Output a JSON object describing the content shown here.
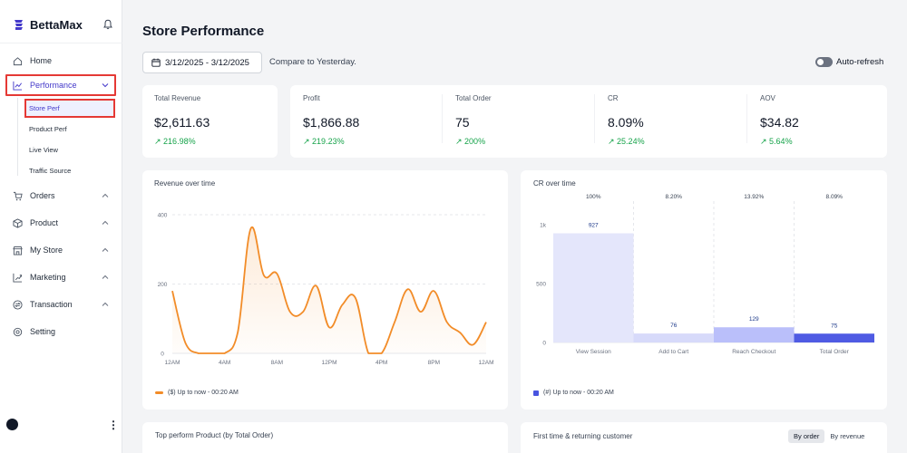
{
  "app": {
    "brand": "BettaMax"
  },
  "sidebar": {
    "items": [
      {
        "label": "Home",
        "icon": "home-icon"
      },
      {
        "label": "Performance",
        "icon": "chart-icon"
      },
      {
        "label": "Orders",
        "icon": "cart-icon"
      },
      {
        "label": "Product",
        "icon": "box-icon"
      },
      {
        "label": "My Store",
        "icon": "store-icon"
      },
      {
        "label": "Marketing",
        "icon": "marketing-icon"
      },
      {
        "label": "Transaction",
        "icon": "transaction-icon"
      },
      {
        "label": "Setting",
        "icon": "gear-icon"
      }
    ],
    "sub_items": [
      "Store Perf",
      "Product Perf",
      "Live View",
      "Traffic Source"
    ]
  },
  "header": {
    "title": "Store Performance",
    "date_range": "3/12/2025 - 3/12/2025",
    "compare": "Compare to Yesterday.",
    "auto_refresh": "Auto-refresh"
  },
  "kpis": [
    {
      "label": "Total Revenue",
      "value": "$2,611.63",
      "change": "216.98%"
    },
    {
      "label": "Profit",
      "value": "$1,866.88",
      "change": "219.23%"
    },
    {
      "label": "Total Order",
      "value": "75",
      "change": "200%"
    },
    {
      "label": "CR",
      "value": "8.09%",
      "change": "25.24%"
    },
    {
      "label": "AOV",
      "value": "$34.82",
      "change": "5.64%"
    }
  ],
  "revenue_card": {
    "title": "Revenue over time",
    "legend": "($) Up to now - 00:20 AM"
  },
  "cr_card": {
    "title": "CR over time",
    "legend": "(#) Up to now - 00:20 AM"
  },
  "bottom": {
    "left_title": "Top perform Product (by Total Order)",
    "right_title": "First time & returning customer",
    "toggle_by_order": "By order",
    "toggle_by_revenue": "By revenue"
  },
  "colors": {
    "accent": "#4338ca",
    "line": "#f28c28",
    "positive": "#16a34a",
    "highlight": "#e53935"
  },
  "chart_data": [
    {
      "type": "line",
      "title": "Revenue over time",
      "x": [
        "12AM",
        "1AM",
        "2AM",
        "3AM",
        "4AM",
        "5AM",
        "6AM",
        "7AM",
        "8AM",
        "9AM",
        "10AM",
        "11AM",
        "12PM",
        "1PM",
        "2PM",
        "3PM",
        "4PM",
        "5PM",
        "6PM",
        "7PM",
        "8PM",
        "9PM",
        "10PM",
        "11PM",
        "12AM"
      ],
      "y": [
        180,
        30,
        0,
        0,
        0,
        60,
        360,
        225,
        230,
        120,
        120,
        195,
        75,
        140,
        160,
        0,
        0,
        90,
        185,
        120,
        180,
        90,
        60,
        25,
        90
      ],
      "xticks": [
        "12AM",
        "4AM",
        "8AM",
        "12PM",
        "4PM",
        "8PM",
        "12AM"
      ],
      "yticks": [
        0,
        200,
        400
      ],
      "ylim": [
        0,
        400
      ],
      "legend": "($) Up to now - 00:20 AM"
    },
    {
      "type": "bar",
      "title": "CR over time",
      "categories": [
        "View Session",
        "Add to Cart",
        "Reach Checkout",
        "Total Order"
      ],
      "values": [
        927,
        76,
        129,
        75
      ],
      "rates": [
        "100%",
        "8.20%",
        "13.92%",
        "8.09%"
      ],
      "yticks": [
        "0",
        "500",
        "1k"
      ],
      "ylim": [
        0,
        1000
      ],
      "legend": "(#) Up to now - 00:20 AM"
    }
  ]
}
